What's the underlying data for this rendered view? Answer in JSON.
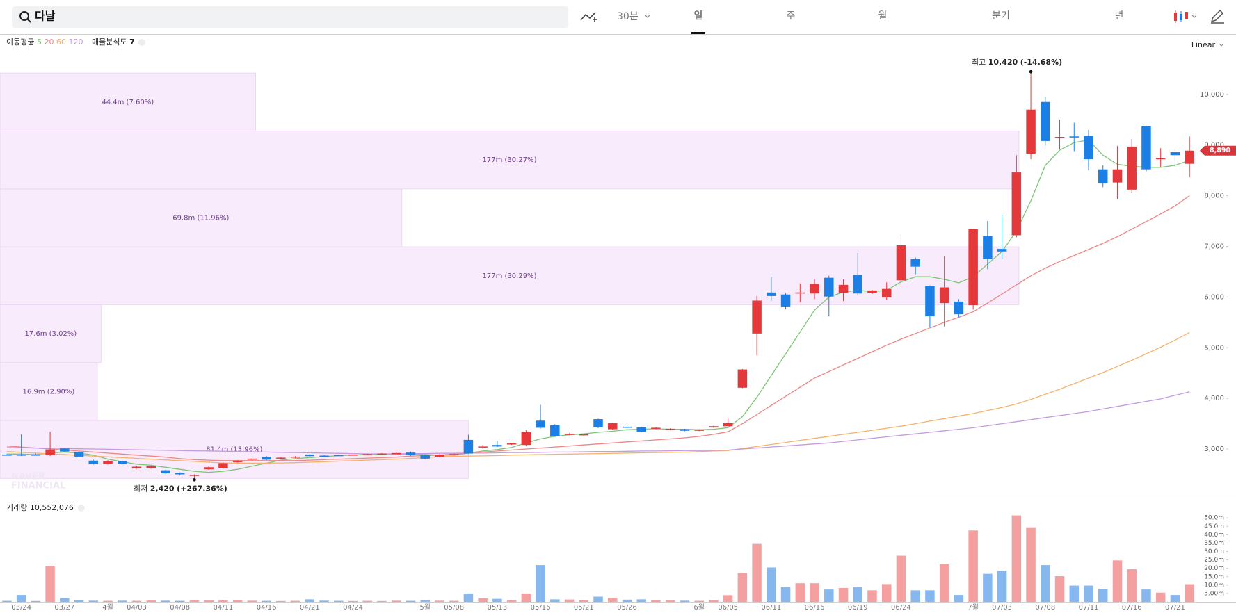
{
  "search": "다날",
  "toolbar": {
    "interval": "30분",
    "periods": [
      "일",
      "주",
      "월",
      "분기",
      "년"
    ],
    "active": "일"
  },
  "chart_data": [
    {
      "type": "candlestick",
      "scale_label": "Linear",
      "up_color": "#e5383b",
      "down_color": "#1b7fe6",
      "categories": [
        null,
        "03/24",
        null,
        null,
        "03/27",
        null,
        null,
        "4월",
        null,
        "04/03",
        null,
        null,
        "04/08",
        null,
        null,
        "04/11",
        null,
        null,
        "04/16",
        null,
        null,
        "04/21",
        null,
        null,
        "04/24",
        null,
        null,
        null,
        null,
        "5월",
        null,
        "05/08",
        null,
        null,
        "05/13",
        null,
        null,
        "05/16",
        null,
        null,
        "05/21",
        null,
        null,
        "05/26",
        null,
        null,
        null,
        null,
        "6월",
        null,
        "06/05",
        null,
        null,
        "06/11",
        null,
        null,
        "06/16",
        null,
        null,
        "06/19",
        null,
        null,
        "06/24",
        null,
        null,
        null,
        null,
        "7월",
        null,
        "07/03",
        null,
        null,
        "07/08",
        null,
        null,
        "07/11",
        null,
        null,
        "07/16",
        null,
        null,
        "07/21",
        null
      ],
      "open": [
        2890,
        2890,
        2890,
        2880,
        3010,
        2940,
        2770,
        2700,
        2760,
        2620,
        2620,
        2580,
        2530,
        2470,
        2600,
        2620,
        2740,
        2790,
        2850,
        2810,
        2830,
        2890,
        2870,
        2880,
        2880,
        2890,
        2900,
        2910,
        2930,
        2880,
        2850,
        2880,
        3180,
        3030,
        3080,
        3090,
        3080,
        3560,
        3470,
        3280,
        3270,
        3590,
        3390,
        3440,
        3430,
        3400,
        3380,
        3390,
        3360,
        3430,
        3450,
        4210,
        5280,
        6090,
        6050,
        6070,
        6070,
        6380,
        6080,
        6440,
        6080,
        5990,
        6330,
        6750,
        6220,
        5880,
        5910,
        5840,
        7200,
        6950,
        7220,
        8830,
        9850,
        9140,
        9170,
        9180,
        8520,
        8260,
        8120,
        9370,
        8720,
        8860,
        8630
      ],
      "high": [
        2900,
        3290,
        2910,
        3340,
        3020,
        2950,
        2790,
        2780,
        2770,
        2660,
        2670,
        2590,
        2540,
        2500,
        2660,
        2730,
        2780,
        2820,
        2860,
        2840,
        2860,
        2910,
        2880,
        2890,
        2900,
        2910,
        2920,
        2940,
        2950,
        2890,
        2900,
        2910,
        3280,
        3080,
        3160,
        3120,
        3370,
        3870,
        3490,
        3310,
        3300,
        3600,
        3520,
        3450,
        3440,
        3430,
        3410,
        3400,
        3390,
        3460,
        3600,
        4580,
        6020,
        6400,
        6080,
        6270,
        6350,
        6420,
        6350,
        6870,
        6140,
        6290,
        7250,
        6780,
        6230,
        6810,
        5960,
        7350,
        7500,
        7620,
        8800,
        10420,
        9950,
        9500,
        9440,
        9300,
        8600,
        8980,
        9120,
        9380,
        8940,
        8920,
        9170
      ],
      "low": [
        2870,
        2860,
        2870,
        2860,
        2940,
        2840,
        2690,
        2690,
        2690,
        2610,
        2610,
        2510,
        2480,
        2420,
        2590,
        2610,
        2730,
        2780,
        2780,
        2800,
        2820,
        2850,
        2850,
        2860,
        2870,
        2880,
        2890,
        2900,
        2870,
        2800,
        2840,
        2870,
        2900,
        3010,
        3040,
        3080,
        3060,
        3400,
        3240,
        3270,
        3260,
        3410,
        3380,
        3410,
        3330,
        3390,
        3370,
        3350,
        3350,
        3420,
        3440,
        4200,
        4850,
        5930,
        5760,
        5900,
        5960,
        5620,
        5920,
        6040,
        6060,
        5940,
        6200,
        6450,
        5400,
        5420,
        5600,
        5750,
        6550,
        6750,
        7180,
        8720,
        8990,
        8920,
        8880,
        8500,
        8170,
        7940,
        8050,
        8480,
        8560,
        8550,
        8370
      ],
      "close": [
        2880,
        2880,
        2880,
        2990,
        2950,
        2850,
        2700,
        2760,
        2700,
        2650,
        2660,
        2520,
        2500,
        2490,
        2640,
        2720,
        2770,
        2810,
        2790,
        2830,
        2850,
        2860,
        2860,
        2870,
        2890,
        2900,
        2910,
        2920,
        2880,
        2810,
        2890,
        2900,
        2910,
        3050,
        3050,
        3110,
        3330,
        3420,
        3250,
        3300,
        3290,
        3430,
        3510,
        3420,
        3340,
        3420,
        3400,
        3360,
        3380,
        3450,
        3510,
        4570,
        5930,
        6020,
        5800,
        6090,
        6260,
        6010,
        6240,
        6070,
        6130,
        6160,
        7020,
        6600,
        5620,
        6190,
        5660,
        7340,
        6750,
        6900,
        8460,
        9700,
        9080,
        9160,
        9150,
        8720,
        8240,
        8520,
        8970,
        8520,
        8740,
        8800,
        8890
      ],
      "ylim": [
        2040,
        11150
      ],
      "yticks": [
        {
          "value": 3000,
          "label": "3,000"
        },
        {
          "value": 4000,
          "label": "4,000"
        },
        {
          "value": 5000,
          "label": "5,000"
        },
        {
          "value": 6000,
          "label": "6,000"
        },
        {
          "value": 7000,
          "label": "7,000"
        },
        {
          "value": 8000,
          "label": "8,000"
        },
        {
          "value": 9000,
          "label": "9,000"
        },
        {
          "value": 10000,
          "label": "10,000"
        }
      ],
      "last": {
        "value": 8890,
        "label": "8,890"
      },
      "extremes": {
        "max": {
          "label": "최고",
          "value": 10420,
          "value_label": "10,420",
          "change": "(-14.68%)"
        },
        "min": {
          "label": "최저",
          "value": 2420,
          "value_label": "2,420",
          "change": "(+267.36%)"
        }
      },
      "moving_average": {
        "label": "이동평균",
        "series": [
          {
            "name": "5",
            "color": "#7cc576",
            "values": [
              2900,
              2900,
              2890,
              2920,
              2940,
              2920,
              2880,
              2800,
              2750,
              2700,
              2680,
              2640,
              2600,
              2560,
              2540,
              2560,
              2600,
              2660,
              2720,
              2780,
              2810,
              2830,
              2850,
              2870,
              2880,
              2890,
              2890,
              2900,
              2900,
              2890,
              2880,
              2880,
              2920,
              2960,
              2990,
              3030,
              3120,
              3200,
              3250,
              3280,
              3300,
              3330,
              3350,
              3380,
              3390,
              3400,
              3390,
              3390,
              3380,
              3390,
              3420,
              3640,
              4020,
              4450,
              4880,
              5310,
              5740,
              6000,
              6100,
              6130,
              6110,
              6130,
              6300,
              6400,
              6400,
              6350,
              6280,
              6400,
              6650,
              6900,
              7300,
              7900,
              8600,
              8900,
              9050,
              9100,
              8800,
              8620,
              8580,
              8560,
              8560,
              8600,
              8700
            ]
          },
          {
            "name": "20",
            "color": "#ef8585",
            "values": [
              3060,
              3040,
              3020,
              3000,
              2980,
              2960,
              2940,
              2920,
              2900,
              2880,
              2860,
              2840,
              2810,
              2790,
              2780,
              2770,
              2770,
              2770,
              2770,
              2770,
              2770,
              2780,
              2790,
              2800,
              2810,
              2820,
              2830,
              2840,
              2860,
              2870,
              2880,
              2900,
              2920,
              2940,
              2960,
              2980,
              3000,
              3020,
              3040,
              3060,
              3080,
              3100,
              3120,
              3140,
              3160,
              3180,
              3200,
              3220,
              3250,
              3290,
              3340,
              3500,
              3680,
              3860,
              4040,
              4220,
              4400,
              4530,
              4660,
              4790,
              4920,
              5050,
              5170,
              5280,
              5390,
              5500,
              5600,
              5710,
              5880,
              6060,
              6240,
              6420,
              6570,
              6700,
              6820,
              6940,
              7060,
              7190,
              7340,
              7490,
              7640,
              7800,
              8000
            ]
          },
          {
            "name": "60",
            "color": "#f5b26b",
            "values": [
              2950,
              2935,
              2920,
              2905,
              2890,
              2875,
              2860,
              2845,
              2830,
              2815,
              2800,
              2785,
              2770,
              2755,
              2740,
              2725,
              2720,
              2720,
              2720,
              2725,
              2730,
              2740,
              2750,
              2760,
              2770,
              2780,
              2790,
              2800,
              2815,
              2830,
              2850,
              2855,
              2860,
              2865,
              2870,
              2880,
              2885,
              2890,
              2895,
              2900,
              2905,
              2910,
              2915,
              2920,
              2925,
              2930,
              2935,
              2940,
              2950,
              2960,
              2970,
              3010,
              3050,
              3090,
              3130,
              3170,
              3210,
              3250,
              3290,
              3330,
              3370,
              3410,
              3450,
              3500,
              3550,
              3600,
              3650,
              3700,
              3760,
              3820,
              3890,
              3980,
              4080,
              4180,
              4290,
              4400,
              4510,
              4630,
              4750,
              4880,
              5010,
              5150,
              5300
            ]
          },
          {
            "name": "120",
            "color": "#c49ae0",
            "values": [
              3030,
              3025,
              3020,
              3015,
              3010,
              3005,
              3000,
              2995,
              2990,
              2985,
              2980,
              2975,
              2970,
              2965,
              2960,
              2955,
              2950,
              2945,
              2940,
              2935,
              2930,
              2925,
              2920,
              2915,
              2910,
              2905,
              2905,
              2905,
              2910,
              2910,
              2915,
              2915,
              2920,
              2920,
              2925,
              2930,
              2930,
              2935,
              2940,
              2940,
              2945,
              2950,
              2950,
              2955,
              2960,
              2960,
              2965,
              2970,
              2970,
              2975,
              2980,
              3000,
              3020,
              3040,
              3060,
              3080,
              3100,
              3120,
              3150,
              3180,
              3210,
              3240,
              3270,
              3300,
              3330,
              3360,
              3390,
              3420,
              3460,
              3500,
              3540,
              3580,
              3620,
              3660,
              3700,
              3740,
              3790,
              3840,
              3890,
              3940,
              3990,
              4060,
              4130
            ]
          }
        ]
      },
      "profile": {
        "name": "매물분석도",
        "count": 7,
        "bins": [
          2420,
          3563,
          4706,
          5849,
          6991,
          8134,
          9277,
          10420
        ],
        "values": [
          81400000,
          16900000,
          17600000,
          177000000,
          69800000,
          177000000,
          44400000
        ],
        "value_labels": [
          "81.4m",
          "16.9m",
          "17.6m",
          "177m",
          "69.8m",
          "177m",
          "44.4m"
        ],
        "shares": [
          13.96,
          2.9,
          3.02,
          30.29,
          11.96,
          30.27,
          7.6
        ],
        "share_labels": [
          "(13.96%)",
          "(2.90%)",
          "(3.02%)",
          "(30.29%)",
          "(11.96%)",
          "(30.27%)",
          "(7.60%)"
        ]
      },
      "watermark": [
        "NAVER",
        "FINANCIAL"
      ]
    },
    {
      "type": "bar",
      "title": "거래량",
      "last_value_label": "10,552,076",
      "up_color": "#f4a0a0",
      "down_color": "#86b8ef",
      "values": [
        600000,
        4100000,
        500000,
        21400000,
        2200000,
        900000,
        700000,
        600000,
        700000,
        600000,
        800000,
        700000,
        600000,
        900000,
        800000,
        1200000,
        900000,
        700000,
        600000,
        500000,
        600000,
        1500000,
        700000,
        600000,
        500000,
        600000,
        500000,
        700000,
        600000,
        900000,
        700000,
        600000,
        5000000,
        2200000,
        1800000,
        1200000,
        5000000,
        21900000,
        1500000,
        1400000,
        1000000,
        3100000,
        2400000,
        1300000,
        1500000,
        900000,
        800000,
        700000,
        600000,
        1200000,
        4000000,
        17200000,
        34500000,
        20500000,
        8800000,
        11100000,
        11100000,
        7400000,
        8300000,
        8800000,
        6900000,
        10600000,
        27500000,
        6900000,
        6900000,
        22400000,
        4100000,
        42500000,
        16700000,
        18600000,
        51500000,
        44400000,
        21900000,
        15300000,
        9700000,
        9700000,
        7800000,
        24700000,
        19500000,
        7400000,
        5500000,
        4100000,
        10552076
      ],
      "ylim": [
        0,
        60000000
      ],
      "yticks": [
        {
          "value": 5000000,
          "label": "5.00m"
        },
        {
          "value": 10000000,
          "label": "10.0m"
        },
        {
          "value": 15000000,
          "label": "15.0m"
        },
        {
          "value": 20000000,
          "label": "20.0m"
        },
        {
          "value": 25000000,
          "label": "25.0m"
        },
        {
          "value": 30000000,
          "label": "30.0m"
        },
        {
          "value": 35000000,
          "label": "35.0m"
        },
        {
          "value": 40000000,
          "label": "40.0m"
        },
        {
          "value": 45000000,
          "label": "45.0m"
        },
        {
          "value": 50000000,
          "label": "50.0m"
        }
      ]
    }
  ]
}
